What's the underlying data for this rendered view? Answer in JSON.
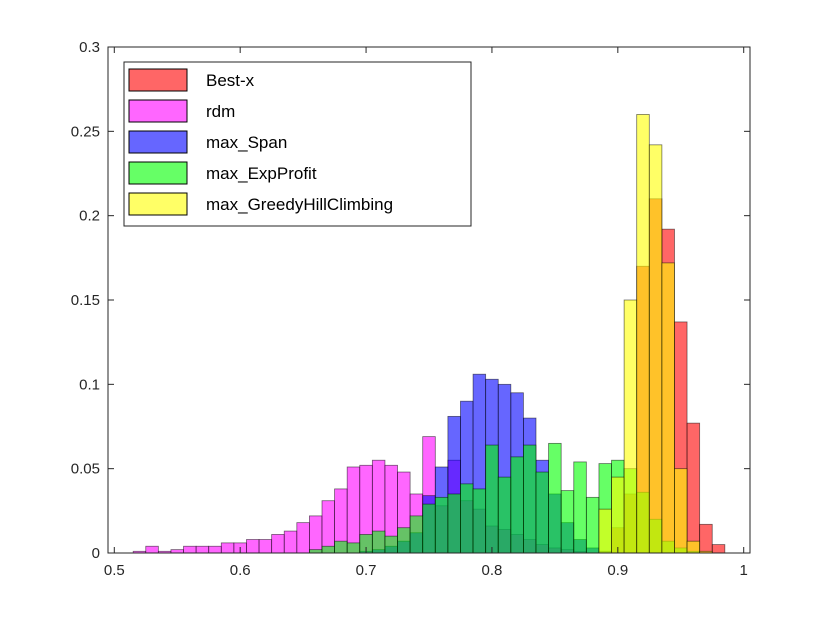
{
  "chart_data": {
    "type": "bar",
    "subtype": "overlapping-histogram",
    "title": "",
    "xlabel": "",
    "ylabel": "",
    "xlim": [
      0.495,
      1.005
    ],
    "ylim": [
      0,
      0.3
    ],
    "bin_width": 0.01,
    "xticks": [
      0.5,
      0.6,
      0.7,
      0.8,
      0.9,
      1
    ],
    "xtick_labels": [
      "0.5",
      "0.6",
      "0.7",
      "0.8",
      "0.9",
      "1"
    ],
    "yticks": [
      0,
      0.05,
      0.1,
      0.15,
      0.2,
      0.25,
      0.3
    ],
    "ytick_labels": [
      "0",
      "0.05",
      "0.1",
      "0.15",
      "0.2",
      "0.25",
      "0.3"
    ],
    "grid": false,
    "legend_position": "top-left",
    "series": [
      {
        "name": "Best-x",
        "color": "#ff0000",
        "bins": [
          {
            "x": 0.89,
            "y": 0.001
          },
          {
            "x": 0.9,
            "y": 0.015
          },
          {
            "x": 0.91,
            "y": 0.035
          },
          {
            "x": 0.92,
            "y": 0.17
          },
          {
            "x": 0.93,
            "y": 0.21
          },
          {
            "x": 0.94,
            "y": 0.192
          },
          {
            "x": 0.95,
            "y": 0.137
          },
          {
            "x": 0.96,
            "y": 0.077
          },
          {
            "x": 0.97,
            "y": 0.017
          },
          {
            "x": 0.98,
            "y": 0.005
          }
        ]
      },
      {
        "name": "rdm",
        "color": "#ff00ff",
        "bins": [
          {
            "x": 0.52,
            "y": 0.001
          },
          {
            "x": 0.53,
            "y": 0.004
          },
          {
            "x": 0.54,
            "y": 0.001
          },
          {
            "x": 0.55,
            "y": 0.002
          },
          {
            "x": 0.56,
            "y": 0.004
          },
          {
            "x": 0.57,
            "y": 0.004
          },
          {
            "x": 0.58,
            "y": 0.004
          },
          {
            "x": 0.59,
            "y": 0.006
          },
          {
            "x": 0.6,
            "y": 0.006
          },
          {
            "x": 0.61,
            "y": 0.008
          },
          {
            "x": 0.62,
            "y": 0.008
          },
          {
            "x": 0.63,
            "y": 0.011
          },
          {
            "x": 0.64,
            "y": 0.013
          },
          {
            "x": 0.65,
            "y": 0.018
          },
          {
            "x": 0.66,
            "y": 0.022
          },
          {
            "x": 0.67,
            "y": 0.031
          },
          {
            "x": 0.68,
            "y": 0.038
          },
          {
            "x": 0.69,
            "y": 0.051
          },
          {
            "x": 0.7,
            "y": 0.052
          },
          {
            "x": 0.71,
            "y": 0.055
          },
          {
            "x": 0.72,
            "y": 0.052
          },
          {
            "x": 0.73,
            "y": 0.048
          },
          {
            "x": 0.74,
            "y": 0.035
          },
          {
            "x": 0.75,
            "y": 0.069
          },
          {
            "x": 0.76,
            "y": 0.028
          },
          {
            "x": 0.77,
            "y": 0.055
          },
          {
            "x": 0.78,
            "y": 0.031
          },
          {
            "x": 0.79,
            "y": 0.026
          },
          {
            "x": 0.8,
            "y": 0.016
          },
          {
            "x": 0.81,
            "y": 0.014
          },
          {
            "x": 0.82,
            "y": 0.011
          },
          {
            "x": 0.83,
            "y": 0.008
          },
          {
            "x": 0.84,
            "y": 0.005
          },
          {
            "x": 0.85,
            "y": 0.003
          },
          {
            "x": 0.86,
            "y": 0.002
          },
          {
            "x": 0.87,
            "y": 0.001
          }
        ]
      },
      {
        "name": "max_Span",
        "color": "#0000ff",
        "bins": [
          {
            "x": 0.7,
            "y": 0.001
          },
          {
            "x": 0.71,
            "y": 0.002
          },
          {
            "x": 0.72,
            "y": 0.004
          },
          {
            "x": 0.73,
            "y": 0.007
          },
          {
            "x": 0.74,
            "y": 0.012
          },
          {
            "x": 0.75,
            "y": 0.034
          },
          {
            "x": 0.76,
            "y": 0.051
          },
          {
            "x": 0.77,
            "y": 0.081
          },
          {
            "x": 0.78,
            "y": 0.09
          },
          {
            "x": 0.79,
            "y": 0.106
          },
          {
            "x": 0.8,
            "y": 0.103
          },
          {
            "x": 0.81,
            "y": 0.1
          },
          {
            "x": 0.82,
            "y": 0.095
          },
          {
            "x": 0.83,
            "y": 0.08
          },
          {
            "x": 0.84,
            "y": 0.055
          },
          {
            "x": 0.85,
            "y": 0.035
          },
          {
            "x": 0.86,
            "y": 0.018
          },
          {
            "x": 0.87,
            "y": 0.008
          },
          {
            "x": 0.88,
            "y": 0.003
          },
          {
            "x": 0.89,
            "y": 0.001
          }
        ]
      },
      {
        "name": "max_ExpProfit",
        "color": "#00ff00",
        "bins": [
          {
            "x": 0.66,
            "y": 0.002
          },
          {
            "x": 0.67,
            "y": 0.004
          },
          {
            "x": 0.68,
            "y": 0.007
          },
          {
            "x": 0.69,
            "y": 0.006
          },
          {
            "x": 0.7,
            "y": 0.011
          },
          {
            "x": 0.71,
            "y": 0.013
          },
          {
            "x": 0.72,
            "y": 0.01
          },
          {
            "x": 0.73,
            "y": 0.015
          },
          {
            "x": 0.74,
            "y": 0.022
          },
          {
            "x": 0.75,
            "y": 0.029
          },
          {
            "x": 0.76,
            "y": 0.033
          },
          {
            "x": 0.77,
            "y": 0.035
          },
          {
            "x": 0.78,
            "y": 0.041
          },
          {
            "x": 0.79,
            "y": 0.038
          },
          {
            "x": 0.8,
            "y": 0.064
          },
          {
            "x": 0.81,
            "y": 0.045
          },
          {
            "x": 0.82,
            "y": 0.057
          },
          {
            "x": 0.83,
            "y": 0.064
          },
          {
            "x": 0.84,
            "y": 0.048
          },
          {
            "x": 0.85,
            "y": 0.065
          },
          {
            "x": 0.86,
            "y": 0.037
          },
          {
            "x": 0.87,
            "y": 0.054
          },
          {
            "x": 0.88,
            "y": 0.033
          },
          {
            "x": 0.89,
            "y": 0.053
          },
          {
            "x": 0.9,
            "y": 0.055
          },
          {
            "x": 0.91,
            "y": 0.05
          },
          {
            "x": 0.92,
            "y": 0.036
          },
          {
            "x": 0.93,
            "y": 0.02
          },
          {
            "x": 0.94,
            "y": 0.007
          },
          {
            "x": 0.95,
            "y": 0.003
          },
          {
            "x": 0.96,
            "y": 0.001
          }
        ]
      },
      {
        "name": "max_GreedyHillClimbing",
        "color": "#ffff00",
        "bins": [
          {
            "x": 0.89,
            "y": 0.026
          },
          {
            "x": 0.9,
            "y": 0.045
          },
          {
            "x": 0.91,
            "y": 0.15
          },
          {
            "x": 0.92,
            "y": 0.26
          },
          {
            "x": 0.93,
            "y": 0.242
          },
          {
            "x": 0.94,
            "y": 0.172
          },
          {
            "x": 0.95,
            "y": 0.05
          },
          {
            "x": 0.96,
            "y": 0.007
          },
          {
            "x": 0.97,
            "y": 0.001
          }
        ]
      }
    ]
  }
}
